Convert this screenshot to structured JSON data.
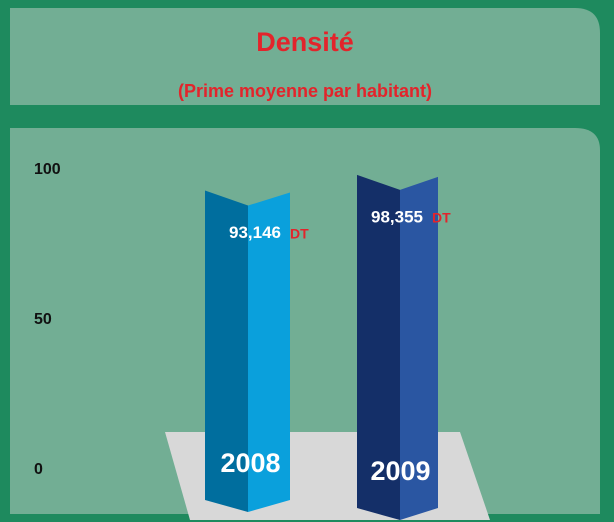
{
  "chart_data": {
    "type": "bar3d",
    "title": "Densité",
    "subtitle": "(Prime moyenne par habitant)",
    "categories": [
      "2008",
      "2009"
    ],
    "values": [
      93.146,
      98.355
    ],
    "value_labels": [
      "93,146",
      "98,355"
    ],
    "value_unit": "DT",
    "colors": [
      [
        "#006e9e",
        "#0aa0dc"
      ],
      [
        "#142f68",
        "#2a56a2"
      ]
    ],
    "ylim": [
      0,
      100
    ],
    "yticks": [
      0,
      50,
      100
    ]
  }
}
